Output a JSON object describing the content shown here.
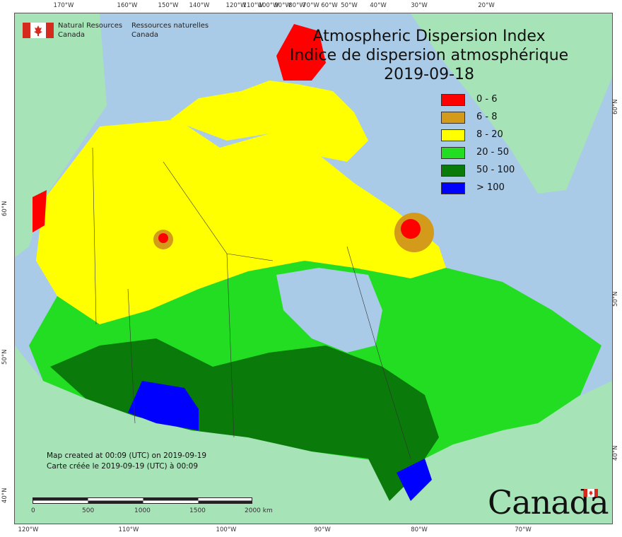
{
  "title": {
    "line1": "Atmospheric Dispersion Index",
    "line2": "Indice de dispersion atmosphérique",
    "date": "2019-09-18"
  },
  "agency": {
    "name_en_1": "Natural Resources",
    "name_en_2": "Canada",
    "name_fr_1": "Ressources naturelles",
    "name_fr_2": "Canada"
  },
  "legend": [
    {
      "label": "0 - 6",
      "color": "#ff0000"
    },
    {
      "label": "6 - 8",
      "color": "#d49a1a"
    },
    {
      "label": "8 - 20",
      "color": "#ffff00"
    },
    {
      "label": "20 - 50",
      "color": "#22dd22"
    },
    {
      "label": "50 - 100",
      "color": "#0a7a0a"
    },
    {
      "label": "> 100",
      "color": "#0000ff"
    }
  ],
  "credit": {
    "line1": "Map created at 00:09 (UTC) on 2019-09-19",
    "line2": "Carte créée le 2019-09-19 (UTC) à 00:09"
  },
  "scale": {
    "ticks": [
      "0",
      "500",
      "1000",
      "1500",
      "2000 km"
    ]
  },
  "wordmark": "Canada",
  "graticule": {
    "top": [
      "170°W",
      "160°W",
      "150°W",
      "140°W",
      "120°W",
      "110°W",
      "100°W",
      "90°W",
      "80°W",
      "70°W",
      "60°W",
      "50°W",
      "40°W",
      "30°W",
      "20°W"
    ],
    "bottom": [
      "120°W",
      "110°W",
      "100°W",
      "90°W",
      "80°W",
      "70°W"
    ],
    "left": [
      "60°N",
      "50°N",
      "40°N"
    ],
    "right": [
      "60°N",
      "50°N",
      "40°N"
    ]
  },
  "colors": {
    "ocean": "#aacbe8",
    "land_outside": "#a6e3b6",
    "greenland": "#a6e3b6"
  }
}
